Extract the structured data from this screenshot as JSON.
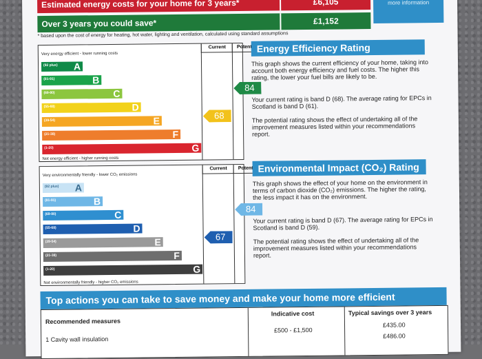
{
  "costs": {
    "estimated_label": "Estimated energy costs for your home for 3 years*",
    "estimated_value": "£6,105",
    "save_label": "Over 3 years you could save*",
    "save_value": "£1,152",
    "side_box": "recommendations report for more information",
    "footnote": "* based upon the cost of energy for heating, hot water, lighting and ventilation, calculated using standard assumptions"
  },
  "energy_chart": {
    "top_caption": "Very energy efficient - lower running costs",
    "bottom_caption": "Not energy efficient - higher running costs",
    "col_current": "Current",
    "col_potential": "Potential",
    "bands": [
      {
        "range": "(92 plus)",
        "letter": "A",
        "color": "#0f8a48",
        "length": 0.2
      },
      {
        "range": "(81-91)",
        "letter": "B",
        "color": "#1aa34a",
        "length": 0.29
      },
      {
        "range": "(69-80)",
        "letter": "C",
        "color": "#8cc63f",
        "length": 0.39
      },
      {
        "range": "(55-68)",
        "letter": "D",
        "color": "#f2d21b",
        "length": 0.48
      },
      {
        "range": "(39-54)",
        "letter": "E",
        "color": "#f5a623",
        "length": 0.58
      },
      {
        "range": "(21-38)",
        "letter": "F",
        "color": "#ee7d2c",
        "length": 0.67
      },
      {
        "range": "(1-20)",
        "letter": "G",
        "color": "#d9252e",
        "length": 0.77
      }
    ],
    "current": {
      "value": "68",
      "band_index": 3,
      "color": "#f2c21b"
    },
    "potential": {
      "value": "84",
      "band_index": 1,
      "color": "#1f8a46"
    }
  },
  "env_chart": {
    "top_caption": "Very environmentally friendly - lower CO₂ emissions",
    "bottom_caption": "Not environmentally friendly - higher CO₂ emissions",
    "col_current": "Current",
    "col_potential": "Potential",
    "bands": [
      {
        "range": "(92 plus)",
        "letter": "A",
        "color": "#c8e3f5",
        "length": 0.2
      },
      {
        "range": "(81-91)",
        "letter": "B",
        "color": "#6fb7e6",
        "length": 0.29
      },
      {
        "range": "(69-80)",
        "letter": "C",
        "color": "#2f8fd0",
        "length": 0.39
      },
      {
        "range": "(55-68)",
        "letter": "D",
        "color": "#1f5fb0",
        "length": 0.48
      },
      {
        "range": "(39-54)",
        "letter": "E",
        "color": "#9a9a9a",
        "length": 0.58
      },
      {
        "range": "(21-38)",
        "letter": "F",
        "color": "#6e6e6e",
        "length": 0.67
      },
      {
        "range": "(1-20)",
        "letter": "G",
        "color": "#3e3e3e",
        "length": 0.77
      }
    ],
    "current": {
      "value": "67",
      "band_index": 3,
      "color": "#1f5fb0"
    },
    "potential": {
      "value": "84",
      "band_index": 1,
      "color": "#6fb7e6"
    }
  },
  "efficiency_text": {
    "heading": "Energy Efficiency Rating",
    "p1": "This graph shows the current efficiency of your home, taking into account both energy efficiency and fuel costs. The higher this rating, the lower your fuel bills are likely to be.",
    "p2": "Your current rating is band D (68). The average rating for EPCs in Scotland is band D (61).",
    "p3": "The potential rating shows the effect of undertaking all of the improvement measures listed within your recommendations report."
  },
  "environment_text": {
    "heading": "Environmental Impact (CO₂) Rating",
    "p1": "This graph shows the effect of your home on the environment in terms of carbon dioxide (CO₂) emissions. The higher the rating, the less impact it has on the environment.",
    "p2": "Your current rating is band D (67). The average rating for EPCs in Scotland is band D (59).",
    "p3": "The potential rating shows the effect of undertaking all of the improvement measures listed within your recommendations report."
  },
  "actions": {
    "heading": "Top actions you can take to save money and make your home more efficient",
    "col_measures": "Recommended measures",
    "col_cost": "Indicative cost",
    "col_savings": "Typical savings over 3 years",
    "rows": [
      {
        "measure": "1 Cavity wall insulation",
        "cost": "£500 - £1,500",
        "saving": "£435.00"
      },
      {
        "measure": "",
        "cost": "",
        "saving": "£486.00"
      }
    ]
  }
}
